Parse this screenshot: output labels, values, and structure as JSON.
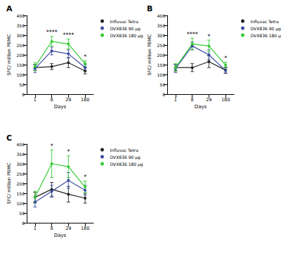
{
  "chart_data": [
    {
      "type": "line",
      "title": "A",
      "categories": [
        "1",
        "8",
        "29",
        "180"
      ],
      "x_label": "Days",
      "y_label": "SFC/ million PBMC",
      "ylim": [
        0,
        400
      ],
      "yticks": [
        0,
        50,
        100,
        150,
        200,
        250,
        300,
        350,
        400
      ],
      "grid": false,
      "legend": "upper right",
      "series": [
        {
          "name": "Influvac Tetra",
          "color": "#222222",
          "marker": "circle",
          "values": [
            135,
            140,
            160,
            118
          ],
          "errors": [
            15,
            15,
            25,
            15
          ]
        },
        {
          "name": "OVX836 90 µg",
          "color": "#3b4aa0",
          "marker": "circle",
          "values": [
            130,
            220,
            205,
            135
          ],
          "errors": [
            20,
            20,
            20,
            15
          ]
        },
        {
          "name": "OVX836 180 µg",
          "color": "#33cc33",
          "marker": "circle",
          "values": [
            140,
            268,
            255,
            155
          ],
          "errors": [
            20,
            25,
            25,
            15
          ]
        }
      ],
      "annotations": [
        {
          "x": "8",
          "text": "****"
        },
        {
          "x": "29",
          "text": "****"
        },
        {
          "x": "180",
          "text": "*"
        }
      ]
    },
    {
      "type": "line",
      "title": "B",
      "categories": [
        "1",
        "8",
        "29",
        "180"
      ],
      "x_label": "Days",
      "y_label": "SFC/ million PBMC",
      "ylim": [
        0,
        400
      ],
      "yticks": [
        0,
        50,
        100,
        150,
        200,
        250,
        300,
        350,
        400
      ],
      "grid": false,
      "legend": "upper right",
      "series": [
        {
          "name": "Influvac Tetra",
          "color": "#222222",
          "marker": "circle",
          "values": [
            135,
            135,
            165,
            122
          ],
          "errors": [
            15,
            20,
            30,
            15
          ]
        },
        {
          "name": "OVX836 90 µg",
          "color": "#3b4aa0",
          "marker": "circle",
          "values": [
            130,
            245,
            200,
            120
          ],
          "errors": [
            20,
            20,
            25,
            15
          ]
        },
        {
          "name": "OVX836 180 µg",
          "color": "#33cc33",
          "marker": "circle",
          "values": [
            135,
            255,
            245,
            148
          ],
          "errors": [
            20,
            30,
            30,
            15
          ]
        }
      ],
      "annotations": [
        {
          "x": "8",
          "text": "****"
        },
        {
          "x": "29",
          "text": "*"
        },
        {
          "x": "180",
          "text": "*"
        }
      ]
    },
    {
      "type": "line",
      "title": "C",
      "categories": [
        "1",
        "8",
        "29",
        "180"
      ],
      "x_label": "Days",
      "y_label": "SFC/ million PBMC",
      "ylim": [
        0,
        400
      ],
      "yticks": [
        0,
        50,
        100,
        150,
        200,
        250,
        300,
        350,
        400
      ],
      "grid": false,
      "legend": "upper right",
      "series": [
        {
          "name": "Influvac Tetra",
          "color": "#222222",
          "marker": "circle",
          "values": [
            130,
            170,
            145,
            125
          ],
          "errors": [
            25,
            35,
            40,
            25
          ]
        },
        {
          "name": "OVX836 90 µg",
          "color": "#3b4aa0",
          "marker": "circle",
          "values": [
            105,
            160,
            215,
            165
          ],
          "errors": [
            25,
            30,
            40,
            25
          ]
        },
        {
          "name": "OVX836 180 µg",
          "color": "#33cc33",
          "marker": "circle",
          "values": [
            130,
            300,
            285,
            182
          ],
          "errors": [
            30,
            70,
            55,
            30
          ]
        }
      ],
      "annotations": [
        {
          "x": "8",
          "text": "*"
        },
        {
          "x": "29",
          "text": "*"
        },
        {
          "x": "180",
          "text": "*"
        }
      ]
    }
  ]
}
